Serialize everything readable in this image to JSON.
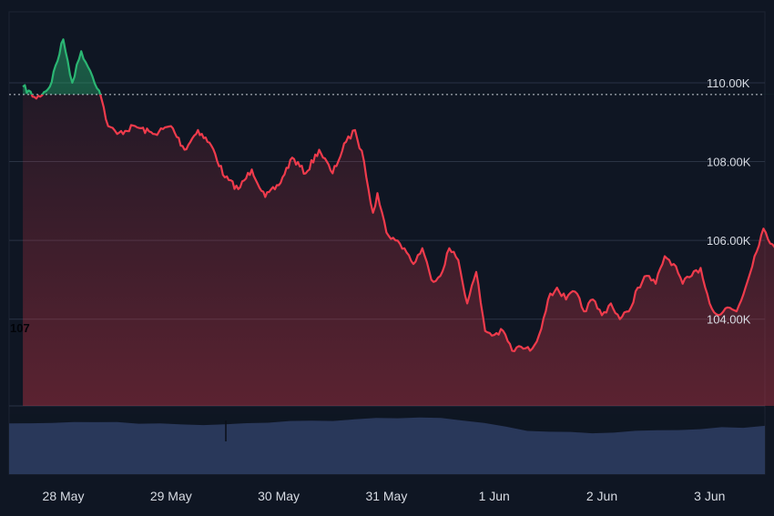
{
  "chart_data": {
    "type": "area",
    "xlabel": "",
    "ylabel": "",
    "x_tick_labels": [
      "28 May",
      "29 May",
      "30 May",
      "31 May",
      "1 Jun",
      "2 Jun",
      "3 Jun"
    ],
    "y_tick_labels": [
      "110.00K",
      "108.00K",
      "106.00K",
      "104.00K"
    ],
    "y_ticks": [
      110000,
      108000,
      106000,
      104000
    ],
    "ylim": [
      101800,
      111800
    ],
    "reference_value": 109700,
    "stray_label": "107",
    "grid": true,
    "colors": {
      "background": "#0f1623",
      "above_reference": "#2bb673",
      "below_reference": "#ef3b4c",
      "volume": "#2b3a5e",
      "grid": "#2a3344",
      "text": "#d7dbe3"
    },
    "series": [
      {
        "points": [
          [
            "27 May 15:00",
            109900
          ],
          [
            "27 May 18:00",
            109600
          ],
          [
            "27 May 21:00",
            109900
          ],
          [
            "28 May 00:00",
            111100
          ],
          [
            "28 May 02:00",
            110000
          ],
          [
            "28 May 04:00",
            110800
          ],
          [
            "28 May 06:00",
            110300
          ],
          [
            "28 May 08:00",
            109800
          ],
          [
            "28 May 10:00",
            108900
          ],
          [
            "28 May 12:00",
            108700
          ],
          [
            "28 May 16:00",
            108900
          ],
          [
            "28 May 20:00",
            108700
          ],
          [
            "29 May 00:00",
            108900
          ],
          [
            "29 May 03:00",
            108300
          ],
          [
            "29 May 06:00",
            108800
          ],
          [
            "29 May 09:00",
            108400
          ],
          [
            "29 May 12:00",
            107600
          ],
          [
            "29 May 15:00",
            107300
          ],
          [
            "29 May 18:00",
            107800
          ],
          [
            "29 May 21:00",
            107100
          ],
          [
            "30 May 00:00",
            107400
          ],
          [
            "30 May 03:00",
            108100
          ],
          [
            "30 May 06:00",
            107700
          ],
          [
            "30 May 09:00",
            108300
          ],
          [
            "30 May 12:00",
            107700
          ],
          [
            "30 May 15:00",
            108500
          ],
          [
            "30 May 17:00",
            108800
          ],
          [
            "30 May 19:00",
            108000
          ],
          [
            "30 May 21:00",
            106700
          ],
          [
            "30 May 22:00",
            107200
          ],
          [
            "31 May 00:00",
            106200
          ],
          [
            "31 May 02:00",
            106000
          ],
          [
            "31 May 04:00",
            105800
          ],
          [
            "31 May 06:00",
            105400
          ],
          [
            "31 May 08:00",
            105800
          ],
          [
            "31 May 10:00",
            105000
          ],
          [
            "31 May 12:00",
            105100
          ],
          [
            "31 May 14:00",
            105800
          ],
          [
            "31 May 16:00",
            105500
          ],
          [
            "31 May 18:00",
            104400
          ],
          [
            "31 May 20:00",
            105200
          ],
          [
            "31 May 22:00",
            103700
          ],
          [
            "1 Jun 00:00",
            103600
          ],
          [
            "1 Jun 02:00",
            103700
          ],
          [
            "1 Jun 04:00",
            103200
          ],
          [
            "1 Jun 06:00",
            103300
          ],
          [
            "1 Jun 08:00",
            103200
          ],
          [
            "1 Jun 10:00",
            103600
          ],
          [
            "1 Jun 12:00",
            104500
          ],
          [
            "1 Jun 14:00",
            104800
          ],
          [
            "1 Jun 16:00",
            104500
          ],
          [
            "1 Jun 18:00",
            104700
          ],
          [
            "1 Jun 20:00",
            104200
          ],
          [
            "1 Jun 22:00",
            104500
          ],
          [
            "2 Jun 00:00",
            104100
          ],
          [
            "2 Jun 02:00",
            104400
          ],
          [
            "2 Jun 04:00",
            104000
          ],
          [
            "2 Jun 06:00",
            104200
          ],
          [
            "2 Jun 08:00",
            104800
          ],
          [
            "2 Jun 10:00",
            105100
          ],
          [
            "2 Jun 12:00",
            104900
          ],
          [
            "2 Jun 14:00",
            105600
          ],
          [
            "2 Jun 16:00",
            105400
          ],
          [
            "2 Jun 18:00",
            104900
          ],
          [
            "2 Jun 20:00",
            105100
          ],
          [
            "2 Jun 22:00",
            105300
          ],
          [
            "3 Jun 00:00",
            104400
          ],
          [
            "3 Jun 02:00",
            104100
          ],
          [
            "3 Jun 04:00",
            104300
          ],
          [
            "3 Jun 06:00",
            104200
          ],
          [
            "3 Jun 08:00",
            104800
          ],
          [
            "3 Jun 10:00",
            105600
          ],
          [
            "3 Jun 12:00",
            106300
          ],
          [
            "3 Jun 14:00",
            105900
          ],
          [
            "3 Jun 16:00",
            105500
          ],
          [
            "3 Jun 18:00",
            105500
          ],
          [
            "3 Jun 20:00",
            105500
          ],
          [
            "3 Jun 23:00",
            105200
          ]
        ]
      }
    ],
    "volume_relative": [
      0.97,
      0.98,
      0.99,
      0.99,
      1.0,
      0.99,
      0.98,
      0.97,
      0.96,
      0.95,
      0.97,
      0.98,
      1.0,
      1.01,
      1.02,
      1.03,
      1.05,
      1.07,
      1.09,
      1.1,
      1.07,
      1.05,
      1.0,
      0.92,
      0.85,
      0.81,
      0.8,
      0.8,
      0.81,
      0.82,
      0.84,
      0.86,
      0.88,
      0.9,
      0.91,
      0.92
    ]
  }
}
